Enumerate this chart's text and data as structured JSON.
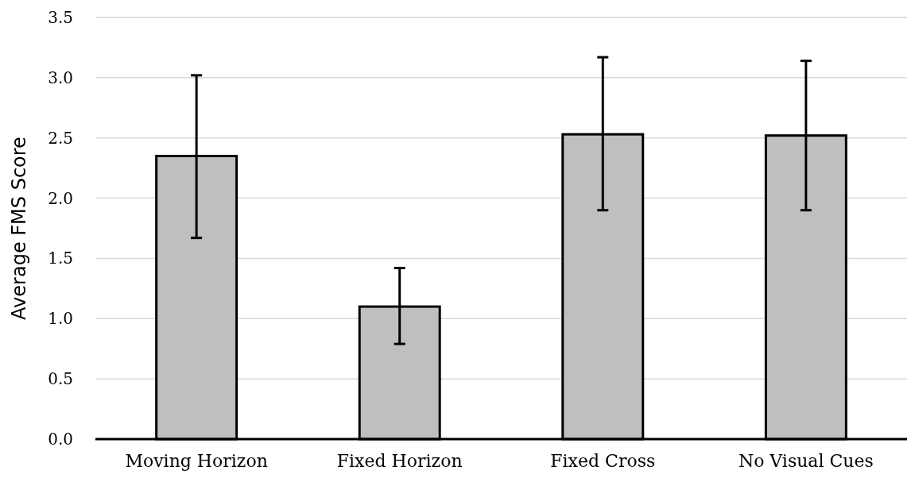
{
  "chart_data": {
    "type": "bar",
    "ylabel": "Average FMS Score",
    "categories": [
      "Moving Horizon",
      "Fixed Horizon",
      "Fixed Cross",
      "No Visual Cues"
    ],
    "values": [
      2.35,
      1.1,
      2.53,
      2.52
    ],
    "errors": [
      [
        1.67,
        3.02
      ],
      [
        0.79,
        1.42
      ],
      [
        1.9,
        3.17
      ],
      [
        1.9,
        3.14
      ]
    ],
    "color": "#bfbfbf",
    "ylim": [
      0,
      3.5
    ],
    "yticks": [
      {
        "value": 0,
        "label": "0.0"
      },
      0.5,
      {
        "value": 1,
        "label": "1.0"
      },
      1.5,
      {
        "value": 2,
        "label": "2.0"
      },
      2.5,
      {
        "value": 3,
        "label": "3.0"
      },
      3.5
    ],
    "grid": "y"
  }
}
